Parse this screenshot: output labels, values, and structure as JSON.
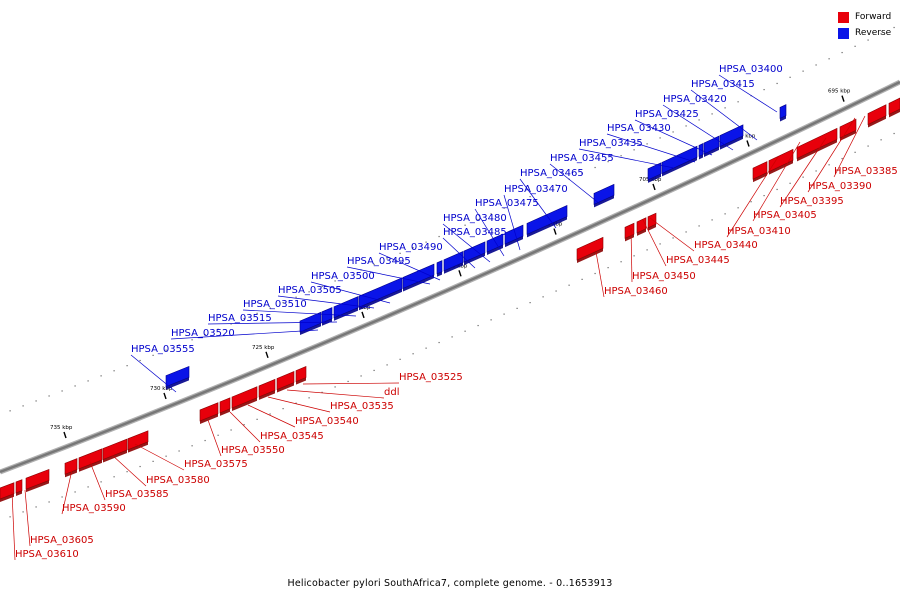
{
  "legend": {
    "forward_label": "Forward",
    "reverse_label": "Reverse",
    "forward_color": "#e8000b",
    "reverse_color": "#0a14e8"
  },
  "caption": "Helicobacter pylori SouthAfrica7, complete genome. - 0..1653913",
  "colors": {
    "backbone": "#777777",
    "forward_label": "#cc0000",
    "reverse_label": "#0000cc"
  },
  "scale_labels": [
    "695 kbp",
    "700 kbp",
    "705 kbp",
    "710 kbp",
    "715 kbp",
    "720 kbp",
    "725 kbp",
    "730 kbp",
    "735 kbp"
  ],
  "reverse_genes": [
    "HPSA_03400",
    "HPSA_03415",
    "HPSA_03420",
    "HPSA_03425",
    "HPSA_03430",
    "HPSA_03435",
    "HPSA_03455",
    "HPSA_03465",
    "HPSA_03470",
    "HPSA_03475",
    "HPSA_03480",
    "HPSA_03485",
    "HPSA_03490",
    "HPSA_03495",
    "HPSA_03500",
    "HPSA_03505",
    "HPSA_03510",
    "HPSA_03515",
    "HPSA_03520",
    "HPSA_03555"
  ],
  "forward_genes_upper": [
    "HPSA_03385",
    "HPSA_03390",
    "HPSA_03395",
    "HPSA_03405",
    "HPSA_03410",
    "HPSA_03440",
    "HPSA_03445",
    "HPSA_03450",
    "HPSA_03460"
  ],
  "forward_genes_lower": [
    "HPSA_03525",
    "ddl",
    "HPSA_03535",
    "HPSA_03540",
    "HPSA_03545",
    "HPSA_03550",
    "HPSA_03575",
    "HPSA_03580",
    "HPSA_03585",
    "HPSA_03590",
    "HPSA_03605",
    "HPSA_03610"
  ]
}
